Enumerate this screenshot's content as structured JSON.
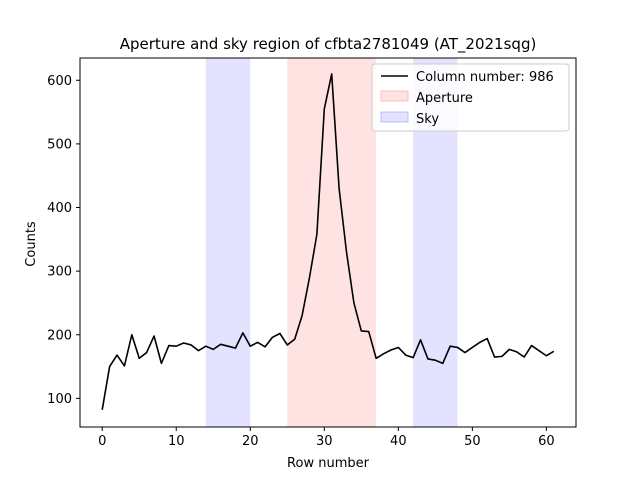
{
  "chart_data": {
    "type": "line",
    "title": "Aperture and sky region of cfbta2781049 (AT_2021sqg)",
    "xlabel": "Row number",
    "ylabel": "Counts",
    "xlim": [
      -3,
      64
    ],
    "ylim": [
      55,
      635
    ],
    "xticks": [
      0,
      10,
      20,
      30,
      40,
      50,
      60
    ],
    "yticks": [
      100,
      200,
      300,
      400,
      500,
      600
    ],
    "grid": false,
    "legend_position": "top-right",
    "series": [
      {
        "name": "Column number: 986",
        "color": "#000000",
        "x": [
          0,
          1,
          2,
          3,
          4,
          5,
          6,
          7,
          8,
          9,
          10,
          11,
          12,
          13,
          14,
          15,
          16,
          17,
          18,
          19,
          20,
          21,
          22,
          23,
          24,
          25,
          26,
          27,
          28,
          29,
          30,
          31,
          32,
          33,
          34,
          35,
          36,
          37,
          38,
          39,
          40,
          41,
          42,
          43,
          44,
          45,
          46,
          47,
          48,
          49,
          50,
          51,
          52,
          53,
          54,
          55,
          56,
          57,
          58,
          59,
          60,
          61
        ],
        "y": [
          82,
          150,
          168,
          151,
          200,
          163,
          172,
          198,
          155,
          183,
          182,
          187,
          184,
          175,
          182,
          177,
          185,
          182,
          179,
          203,
          182,
          188,
          181,
          196,
          202,
          184,
          193,
          230,
          290,
          358,
          555,
          610,
          430,
          330,
          250,
          206,
          205,
          163,
          170,
          176,
          180,
          168,
          164,
          192,
          162,
          160,
          155,
          182,
          180,
          172,
          180,
          188,
          194,
          165,
          166,
          177,
          173,
          165,
          183,
          175,
          167,
          174
        ]
      }
    ],
    "regions": [
      {
        "name": "Aperture",
        "color": "#ff9999",
        "opacity": 0.28,
        "ranges": [
          [
            25,
            37
          ]
        ]
      },
      {
        "name": "Sky",
        "color": "#9999ff",
        "opacity": 0.28,
        "ranges": [
          [
            14,
            20
          ],
          [
            42,
            48
          ]
        ]
      }
    ]
  }
}
